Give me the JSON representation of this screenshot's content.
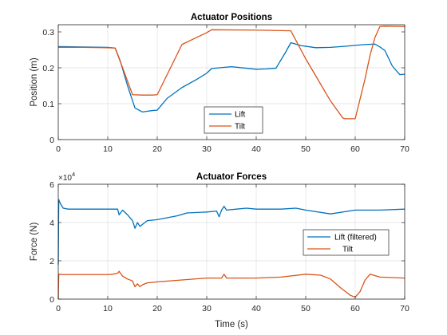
{
  "figure": {
    "background": "#ffffff",
    "axes_color": "#262626",
    "grid_color": "#dfdfdf",
    "series_colors": [
      "#0072bd",
      "#d95319"
    ]
  },
  "chart_data": [
    {
      "type": "line",
      "title": "Actuator Positions",
      "xlabel": "",
      "ylabel": "Position (m)",
      "xlim": [
        0,
        70
      ],
      "ylim": [
        0,
        0.32
      ],
      "xticks": [
        0,
        10,
        20,
        30,
        40,
        50,
        60,
        70
      ],
      "yticks": [
        0,
        0.1,
        0.2,
        0.3
      ],
      "ytick_labels": [
        "0",
        "0.1",
        "0.2",
        "0.3"
      ],
      "grid": true,
      "legend": {
        "position": "bottom-center",
        "entries": [
          "Lift",
          "Tilt"
        ]
      },
      "series": [
        {
          "name": "Lift",
          "color": "#0072bd",
          "x": [
            0,
            5,
            10,
            11.5,
            12.5,
            14,
            15.5,
            17,
            19,
            20,
            22,
            25,
            28,
            30,
            31,
            35,
            40,
            42,
            44,
            46,
            47,
            49,
            52,
            55,
            58,
            62,
            64,
            65,
            66,
            67.5,
            69,
            70
          ],
          "y": [
            0.259,
            0.258,
            0.257,
            0.255,
            0.22,
            0.15,
            0.088,
            0.077,
            0.081,
            0.082,
            0.115,
            0.145,
            0.168,
            0.185,
            0.198,
            0.203,
            0.196,
            0.197,
            0.199,
            0.245,
            0.27,
            0.262,
            0.256,
            0.257,
            0.26,
            0.265,
            0.266,
            0.258,
            0.248,
            0.205,
            0.181,
            0.182
          ]
        },
        {
          "name": "Tilt",
          "color": "#d95319",
          "x": [
            0,
            5,
            10,
            11.5,
            13,
            15,
            17,
            19,
            20,
            25,
            30,
            31,
            40,
            47,
            50,
            55,
            57.5,
            58,
            60,
            62,
            63,
            64,
            65,
            66,
            70
          ],
          "y": [
            0.257,
            0.257,
            0.256,
            0.255,
            0.2,
            0.125,
            0.124,
            0.124,
            0.125,
            0.265,
            0.298,
            0.306,
            0.305,
            0.303,
            0.225,
            0.108,
            0.06,
            0.058,
            0.058,
            0.17,
            0.235,
            0.285,
            0.315,
            0.316,
            0.315
          ]
        }
      ]
    },
    {
      "type": "line",
      "title": "Actuator Forces",
      "xlabel": "Time (s)",
      "ylabel": "Force (N)",
      "y_exponent_label": "×10",
      "y_exponent": "4",
      "xlim": [
        0,
        70
      ],
      "ylim": [
        0,
        60000
      ],
      "xticks": [
        0,
        10,
        20,
        30,
        40,
        50,
        60,
        70
      ],
      "yticks": [
        0,
        20000,
        40000,
        60000
      ],
      "ytick_labels": [
        "0",
        "2",
        "4",
        "6"
      ],
      "grid": true,
      "legend": {
        "position": "right",
        "entries": [
          "Lift (filtered)",
          "Tilt"
        ]
      },
      "series": [
        {
          "name": "Lift (filtered)",
          "color": "#0072bd",
          "x": [
            0,
            0.1,
            0.4,
            1,
            2,
            5,
            10,
            11,
            12,
            12.3,
            13,
            14,
            15,
            15.5,
            16,
            16.5,
            17,
            18,
            20,
            22,
            24,
            26,
            30,
            32,
            32.5,
            33,
            33.5,
            34,
            36,
            38,
            40,
            45,
            48,
            50,
            55,
            60,
            65,
            70
          ],
          "y": [
            18000,
            52000,
            50000,
            47500,
            47000,
            47000,
            47000,
            47000,
            47000,
            44000,
            46500,
            44000,
            41000,
            37000,
            40000,
            38000,
            39000,
            41000,
            41500,
            42500,
            43500,
            45000,
            45500,
            46000,
            43000,
            46500,
            48500,
            46500,
            47000,
            47500,
            47000,
            47000,
            47500,
            46500,
            44500,
            46500,
            46500,
            47000
          ]
        },
        {
          "name": "Tilt",
          "color": "#d95319",
          "x": [
            0,
            0.1,
            1,
            5,
            10,
            11,
            12,
            12.3,
            13,
            14,
            15,
            15.5,
            16,
            16.5,
            17,
            18,
            20,
            25,
            30,
            33,
            33.5,
            34,
            40,
            45,
            50,
            53,
            55,
            57,
            58,
            59,
            60,
            61,
            62,
            63,
            65,
            70
          ],
          "y": [
            0,
            13000,
            12800,
            12800,
            12800,
            13000,
            13500,
            14500,
            12000,
            10500,
            9500,
            6500,
            8000,
            6500,
            7500,
            8500,
            9000,
            10000,
            11000,
            11000,
            13000,
            11000,
            11000,
            11500,
            13000,
            12500,
            10500,
            6000,
            4000,
            2000,
            1000,
            4000,
            10000,
            13000,
            11500,
            11000
          ]
        }
      ]
    }
  ]
}
